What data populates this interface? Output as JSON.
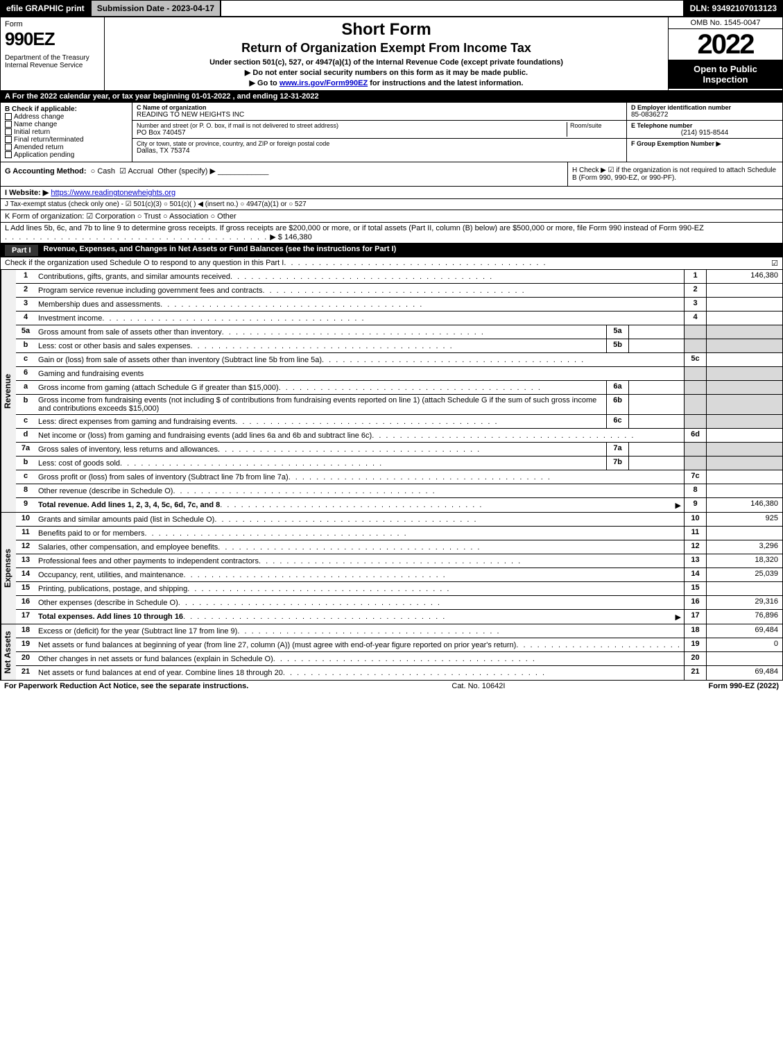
{
  "topbar": {
    "efile": "efile GRAPHIC print",
    "submission": "Submission Date - 2023-04-17",
    "dln": "DLN: 93492107013123"
  },
  "header": {
    "form": "Form",
    "formNum": "990EZ",
    "dept": "Department of the Treasury\nInternal Revenue Service",
    "title1": "Short Form",
    "title2": "Return of Organization Exempt From Income Tax",
    "subtitle": "Under section 501(c), 527, or 4947(a)(1) of the Internal Revenue Code (except private foundations)",
    "warn": "▶ Do not enter social security numbers on this form as it may be made public.",
    "instr": "▶ Go to www.irs.gov/Form990EZ for instructions and the latest information.",
    "instrLink": "www.irs.gov/Form990EZ",
    "omb": "OMB No. 1545-0047",
    "year": "2022",
    "open": "Open to Public Inspection"
  },
  "lineA": "A  For the 2022 calendar year, or tax year beginning 01-01-2022  , and ending 12-31-2022",
  "secB": {
    "label": "B  Check if applicable:",
    "opts": [
      "Address change",
      "Name change",
      "Initial return",
      "Final return/terminated",
      "Amended return",
      "Application pending"
    ]
  },
  "secC": {
    "nameLabel": "C Name of organization",
    "name": "READING TO NEW HEIGHTS INC",
    "addrLabel": "Number and street (or P. O. box, if mail is not delivered to street address)",
    "room": "Room/suite",
    "addr": "PO Box 740457",
    "cityLabel": "City or town, state or province, country, and ZIP or foreign postal code",
    "city": "Dallas, TX  75374"
  },
  "secD": {
    "label": "D Employer identification number",
    "val": "85-0836272"
  },
  "secE": {
    "label": "E Telephone number",
    "val": "(214) 915-8544"
  },
  "secF": {
    "label": "F Group Exemption Number  ▶"
  },
  "lineG": {
    "label": "G Accounting Method:",
    "cash": "Cash",
    "accrual": "Accrual",
    "other": "Other (specify) ▶"
  },
  "lineH": "H  Check ▶ ☑ if the organization is not required to attach Schedule B (Form 990, 990-EZ, or 990-PF).",
  "lineI": {
    "label": "I Website: ▶",
    "url": "https://www.readingtonewheights.org"
  },
  "lineJ": "J Tax-exempt status (check only one) - ☑ 501(c)(3)  ○ 501(c)( ) ◀ (insert no.)  ○ 4947(a)(1) or  ○ 527",
  "lineK": "K Form of organization:  ☑ Corporation  ○ Trust  ○ Association  ○ Other",
  "lineL": {
    "text": "L Add lines 5b, 6c, and 7b to line 9 to determine gross receipts. If gross receipts are $200,000 or more, or if total assets (Part II, column (B) below) are $500,000 or more, file Form 990 instead of Form 990-EZ",
    "amount": "▶ $ 146,380"
  },
  "part1": {
    "tag": "Part I",
    "title": "Revenue, Expenses, and Changes in Net Assets or Fund Balances (see the instructions for Part I)",
    "sub": "Check if the organization used Schedule O to respond to any question in this Part I",
    "checked": "☑"
  },
  "revenue": {
    "tab": "Revenue",
    "lines": [
      {
        "n": "1",
        "d": "Contributions, gifts, grants, and similar amounts received",
        "r": "1",
        "v": "146,380"
      },
      {
        "n": "2",
        "d": "Program service revenue including government fees and contracts",
        "r": "2",
        "v": ""
      },
      {
        "n": "3",
        "d": "Membership dues and assessments",
        "r": "3",
        "v": ""
      },
      {
        "n": "4",
        "d": "Investment income",
        "r": "4",
        "v": ""
      },
      {
        "n": "5a",
        "d": "Gross amount from sale of assets other than inventory",
        "sub": "5a",
        "subv": ""
      },
      {
        "n": "b",
        "d": "Less: cost or other basis and sales expenses",
        "sub": "5b",
        "subv": ""
      },
      {
        "n": "c",
        "d": "Gain or (loss) from sale of assets other than inventory (Subtract line 5b from line 5a)",
        "r": "5c",
        "v": ""
      },
      {
        "n": "6",
        "d": "Gaming and fundraising events"
      },
      {
        "n": "a",
        "d": "Gross income from gaming (attach Schedule G if greater than $15,000)",
        "sub": "6a",
        "subv": ""
      },
      {
        "n": "b",
        "d": "Gross income from fundraising events (not including $                     of contributions from fundraising events reported on line 1) (attach Schedule G if the sum of such gross income and contributions exceeds $15,000)",
        "sub": "6b",
        "subv": ""
      },
      {
        "n": "c",
        "d": "Less: direct expenses from gaming and fundraising events",
        "sub": "6c",
        "subv": ""
      },
      {
        "n": "d",
        "d": "Net income or (loss) from gaming and fundraising events (add lines 6a and 6b and subtract line 6c)",
        "r": "6d",
        "v": ""
      },
      {
        "n": "7a",
        "d": "Gross sales of inventory, less returns and allowances",
        "sub": "7a",
        "subv": ""
      },
      {
        "n": "b",
        "d": "Less: cost of goods sold",
        "sub": "7b",
        "subv": ""
      },
      {
        "n": "c",
        "d": "Gross profit or (loss) from sales of inventory (Subtract line 7b from line 7a)",
        "r": "7c",
        "v": ""
      },
      {
        "n": "8",
        "d": "Other revenue (describe in Schedule O)",
        "r": "8",
        "v": ""
      },
      {
        "n": "9",
        "d": "Total revenue. Add lines 1, 2, 3, 4, 5c, 6d, 7c, and 8",
        "r": "9",
        "v": "146,380",
        "bold": true,
        "arrow": true
      }
    ]
  },
  "expenses": {
    "tab": "Expenses",
    "lines": [
      {
        "n": "10",
        "d": "Grants and similar amounts paid (list in Schedule O)",
        "r": "10",
        "v": "925"
      },
      {
        "n": "11",
        "d": "Benefits paid to or for members",
        "r": "11",
        "v": ""
      },
      {
        "n": "12",
        "d": "Salaries, other compensation, and employee benefits",
        "r": "12",
        "v": "3,296"
      },
      {
        "n": "13",
        "d": "Professional fees and other payments to independent contractors",
        "r": "13",
        "v": "18,320"
      },
      {
        "n": "14",
        "d": "Occupancy, rent, utilities, and maintenance",
        "r": "14",
        "v": "25,039"
      },
      {
        "n": "15",
        "d": "Printing, publications, postage, and shipping",
        "r": "15",
        "v": ""
      },
      {
        "n": "16",
        "d": "Other expenses (describe in Schedule O)",
        "r": "16",
        "v": "29,316"
      },
      {
        "n": "17",
        "d": "Total expenses. Add lines 10 through 16",
        "r": "17",
        "v": "76,896",
        "bold": true,
        "arrow": true
      }
    ]
  },
  "netassets": {
    "tab": "Net Assets",
    "lines": [
      {
        "n": "18",
        "d": "Excess or (deficit) for the year (Subtract line 17 from line 9)",
        "r": "18",
        "v": "69,484"
      },
      {
        "n": "19",
        "d": "Net assets or fund balances at beginning of year (from line 27, column (A)) (must agree with end-of-year figure reported on prior year's return)",
        "r": "19",
        "v": "0"
      },
      {
        "n": "20",
        "d": "Other changes in net assets or fund balances (explain in Schedule O)",
        "r": "20",
        "v": ""
      },
      {
        "n": "21",
        "d": "Net assets or fund balances at end of year. Combine lines 18 through 20",
        "r": "21",
        "v": "69,484"
      }
    ]
  },
  "footer": {
    "left": "For Paperwork Reduction Act Notice, see the separate instructions.",
    "mid": "Cat. No. 10642I",
    "right": "Form 990-EZ (2022)"
  }
}
